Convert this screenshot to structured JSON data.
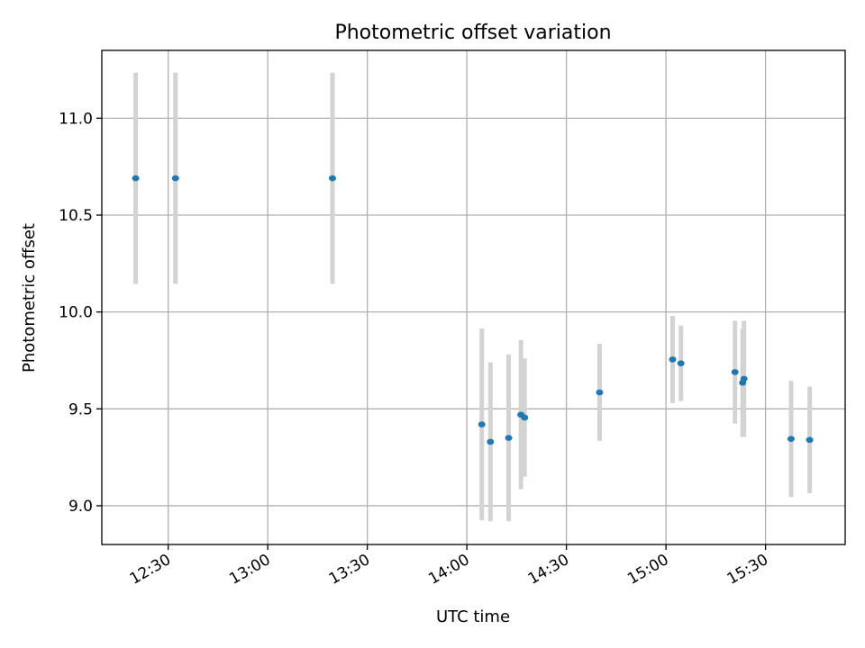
{
  "chart_data": {
    "type": "scatter",
    "title": "Photometric offset variation",
    "xlabel": "UTC time",
    "ylabel": "Photometric offset",
    "xlim": [
      730,
      954
    ],
    "ylim": [
      8.8,
      11.35
    ],
    "grid": true,
    "x_ticks": [
      {
        "value": 750,
        "label": "12:30"
      },
      {
        "value": 780,
        "label": "13:00"
      },
      {
        "value": 810,
        "label": "13:30"
      },
      {
        "value": 840,
        "label": "14:00"
      },
      {
        "value": 870,
        "label": "14:30"
      },
      {
        "value": 900,
        "label": "15:00"
      },
      {
        "value": 930,
        "label": "15:30"
      }
    ],
    "y_ticks": [
      {
        "value": 9.0,
        "label": "9.0"
      },
      {
        "value": 9.5,
        "label": "9.5"
      },
      {
        "value": 10.0,
        "label": "10.0"
      },
      {
        "value": 10.5,
        "label": "10.5"
      },
      {
        "value": 11.0,
        "label": "11.0"
      }
    ],
    "series": [
      {
        "name": "offset",
        "marker_color": "#1f77b4",
        "errorbar_color": "#d3d3d3",
        "points": [
          {
            "x": 740.2,
            "y": 10.69,
            "err": 0.545
          },
          {
            "x": 752.2,
            "y": 10.69,
            "err": 0.545
          },
          {
            "x": 799.5,
            "y": 10.69,
            "err": 0.545
          },
          {
            "x": 844.5,
            "y": 9.42,
            "err": 0.495
          },
          {
            "x": 847.1,
            "y": 9.33,
            "err": 0.41
          },
          {
            "x": 852.6,
            "y": 9.35,
            "err": 0.43
          },
          {
            "x": 856.3,
            "y": 9.47,
            "err": 0.385
          },
          {
            "x": 857.4,
            "y": 9.455,
            "err": 0.305
          },
          {
            "x": 880.0,
            "y": 9.585,
            "err": 0.25
          },
          {
            "x": 902.0,
            "y": 9.755,
            "err": 0.225
          },
          {
            "x": 904.5,
            "y": 9.735,
            "err": 0.195
          },
          {
            "x": 920.8,
            "y": 9.69,
            "err": 0.265
          },
          {
            "x": 923.1,
            "y": 9.635,
            "err": 0.28
          },
          {
            "x": 923.5,
            "y": 9.655,
            "err": 0.3
          },
          {
            "x": 937.7,
            "y": 9.345,
            "err": 0.3
          },
          {
            "x": 943.3,
            "y": 9.34,
            "err": 0.275
          }
        ]
      }
    ]
  }
}
